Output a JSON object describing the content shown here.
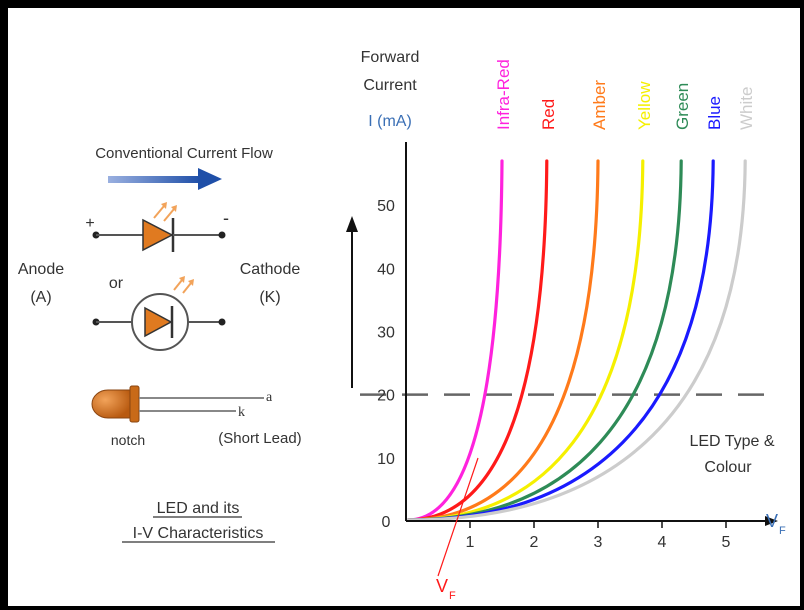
{
  "left": {
    "flow_label": "Conventional Current Flow",
    "plus": "+",
    "minus": "-",
    "anode": "Anode",
    "anode_sym": "(A)",
    "or": "or",
    "cathode": "Cathode",
    "cathode_sym": "(K)",
    "lead_a": "a",
    "lead_k": "k",
    "notch": "notch",
    "short_lead": "(Short Lead)",
    "title_line1": "LED and its",
    "title_line2": "I-V Characteristics"
  },
  "chart": {
    "y_title_line1": "Forward",
    "y_title_line2": "Current",
    "y_unit": "I (mA)",
    "y_ticks": [
      "0",
      "10",
      "20",
      "30",
      "40",
      "50"
    ],
    "x_ticks": [
      "1",
      "2",
      "3",
      "4",
      "5"
    ],
    "x_label_main": "V",
    "x_label_sub": "F",
    "vf_main": "V",
    "vf_sub": "F",
    "legend_line1": "LED Type &",
    "legend_line2": "Colour"
  },
  "chart_data": {
    "type": "line",
    "xlim": [
      0,
      5.5
    ],
    "ylim": [
      0,
      60
    ],
    "threshold_y": 20,
    "series": [
      {
        "name": "Infra-Red",
        "color": "#ff22dd",
        "vf": 1.5
      },
      {
        "name": "Red",
        "color": "#ff1a1a",
        "vf": 2.2
      },
      {
        "name": "Amber",
        "color": "#ff7a1a",
        "vf": 3.0
      },
      {
        "name": "Yellow",
        "color": "#f5f000",
        "vf": 3.7
      },
      {
        "name": "Green",
        "color": "#2e8b57",
        "vf": 4.3
      },
      {
        "name": "Blue",
        "color": "#1a1aff",
        "vf": 4.8
      },
      {
        "name": "White",
        "color": "#cccccc",
        "vf": 5.3
      }
    ]
  }
}
